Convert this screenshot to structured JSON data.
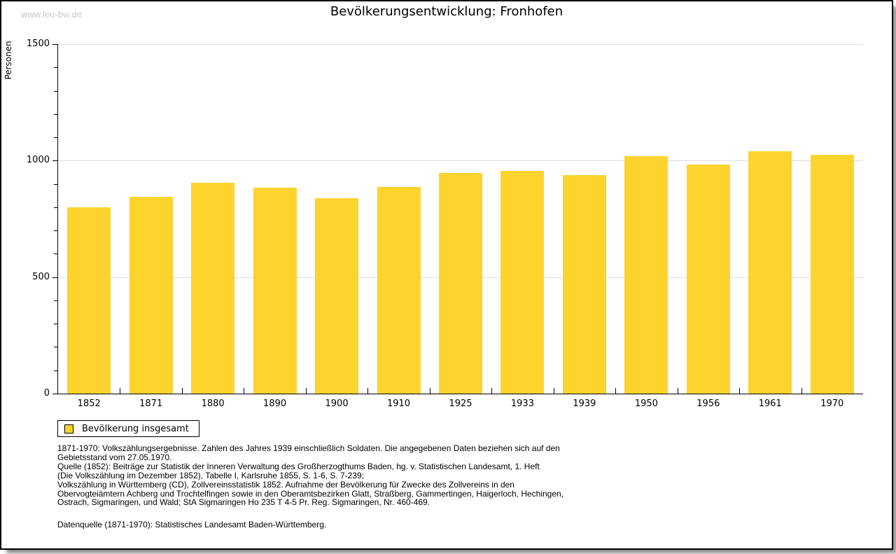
{
  "watermark": "www.leo-bw.de",
  "title": "Bevölkerungsentwicklung: Fronhofen",
  "chart_data": {
    "type": "bar",
    "title": "Bevölkerungsentwicklung: Fronhofen",
    "xlabel": "",
    "ylabel": "Personen",
    "ylim": [
      0,
      1500
    ],
    "yticks": [
      0,
      500,
      1000,
      1500
    ],
    "y_minor_step": 100,
    "grid": true,
    "legend_position": "bottom-left",
    "categories": [
      "1852",
      "1871",
      "1880",
      "1890",
      "1900",
      "1910",
      "1925",
      "1933",
      "1939",
      "1950",
      "1956",
      "1961",
      "1970"
    ],
    "series": [
      {
        "name": "Bevölkerung insgesamt",
        "values": [
          800,
          846,
          905,
          884,
          838,
          888,
          948,
          956,
          938,
          1020,
          982,
          1040,
          1026
        ]
      }
    ],
    "bar_color": "#FDD32D",
    "grid_color": "#DDDDDD"
  },
  "legend": {
    "label": "Bevölkerung insgesamt",
    "swatch_color": "#FDD32D"
  },
  "footnotes": {
    "lines": [
      "1871-1970: Volkszählungsergebnisse. Zahlen des Jahres 1939 einschließlich Soldaten. Die angegebenen Daten beziehen sich auf den",
      "Gebietsstand vom 27.05.1970.",
      "Quelle (1852): Beiträge zur Statistik der Inneren Verwaltung des Großherzogthums Baden, hg. v. Statistischen Landesamt, 1. Heft",
      "(Die Volkszählung im Dezember 1852), Tabelle I, Karlsruhe 1855, S. 1-6, S. 7-239;",
      "Volkszählung in Württemberg (CD), Zollvereinsstatistik 1852. Aufnahme der Bevölkerung für Zwecke des Zollvereins in den",
      "Obervogteiämtern Achberg und Trochtelfingen sowie in den Oberamtsbezirken Glatt, Straßberg, Gammertingen, Haigerloch, Hechingen,",
      "Ostrach, Sigmaringen, und Wald; StA Sigmaringen Ho 235 T 4-5 Pr. Reg. Sigmaringen, Nr. 460-469."
    ],
    "datasource": "Datenquelle (1871-1970): Statistisches Landesamt Baden-Württemberg."
  }
}
